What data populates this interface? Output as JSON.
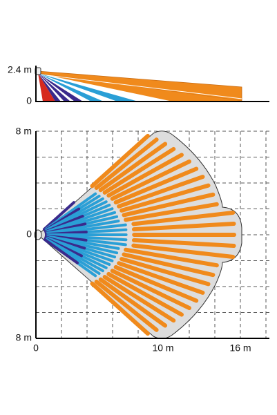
{
  "side_view": {
    "height_label": "2.4 m",
    "zero_label": "0"
  },
  "top_view": {
    "top_label": "8 m",
    "mid_label": "0",
    "bottom_label": "8 m",
    "x_labels": [
      "0",
      "10 m",
      "16 m"
    ]
  }
}
